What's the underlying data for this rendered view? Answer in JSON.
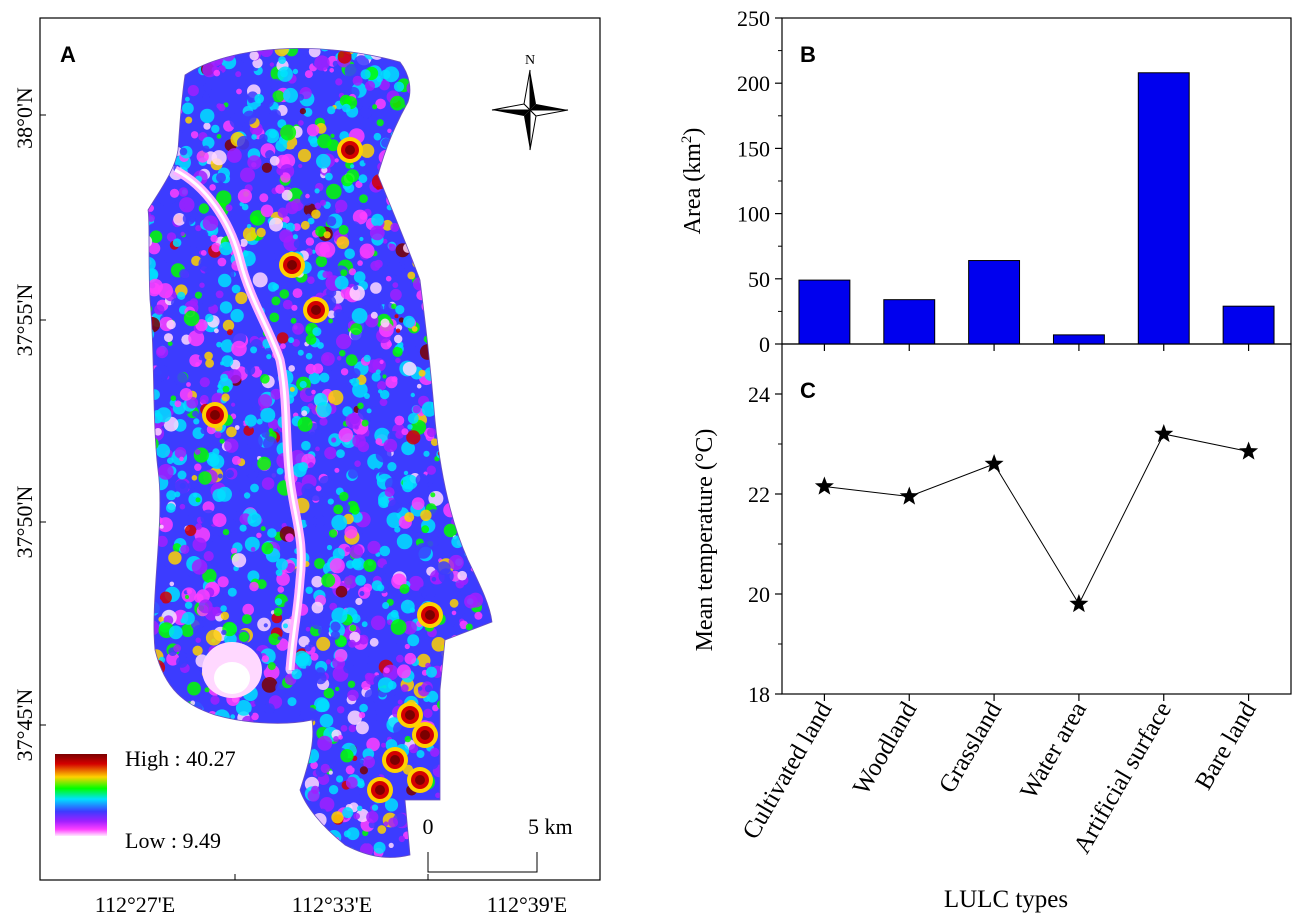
{
  "panel_a": {
    "label": "A",
    "lat_ticks": [
      "38°0'N",
      "37°55'N",
      "37°50'N",
      "37°45'N"
    ],
    "lon_ticks": [
      "112°27'E",
      "112°33'E",
      "112°39'E"
    ],
    "north_label": "N",
    "legend": {
      "high": "High : 40.27",
      "low": "Low : 9.49"
    },
    "scale": {
      "zero": "0",
      "end": "5 km"
    },
    "colors": [
      "#7a0000",
      "#d40000",
      "#ffd200",
      "#00ff00",
      "#00e0ff",
      "#3c3cff",
      "#a020ff",
      "#ff40ff",
      "#ffd8ff"
    ]
  },
  "panel_b": {
    "label": "B",
    "ylabel": "Area (km",
    "ylabel_sup": "2",
    "ylabel_end": ")"
  },
  "panel_c": {
    "label": "C",
    "ylabel": "Mean temperature (°C)"
  },
  "xlabel": "LULC types",
  "chart_data": [
    {
      "panel": "B",
      "type": "bar",
      "categories": [
        "Cultivated land",
        "Woodland",
        "Grassland",
        "Water area",
        "Artificial surface",
        "Bare land"
      ],
      "values": [
        49,
        34,
        64,
        7,
        208,
        29
      ],
      "ylabel": "Area (km2)",
      "ylim": [
        0,
        250
      ],
      "yticks": [
        0,
        50,
        100,
        150,
        200,
        250
      ],
      "bar_color": "#0000ee"
    },
    {
      "panel": "C",
      "type": "line",
      "marker": "star",
      "categories": [
        "Cultivated land",
        "Woodland",
        "Grassland",
        "Water area",
        "Artificial surface",
        "Bare land"
      ],
      "values": [
        22.15,
        21.95,
        22.6,
        19.8,
        23.2,
        22.85
      ],
      "ylabel": "Mean temperature (°C)",
      "xlabel": "LULC types",
      "ylim": [
        18,
        25
      ],
      "yticks": [
        18,
        20,
        22,
        24
      ]
    }
  ]
}
